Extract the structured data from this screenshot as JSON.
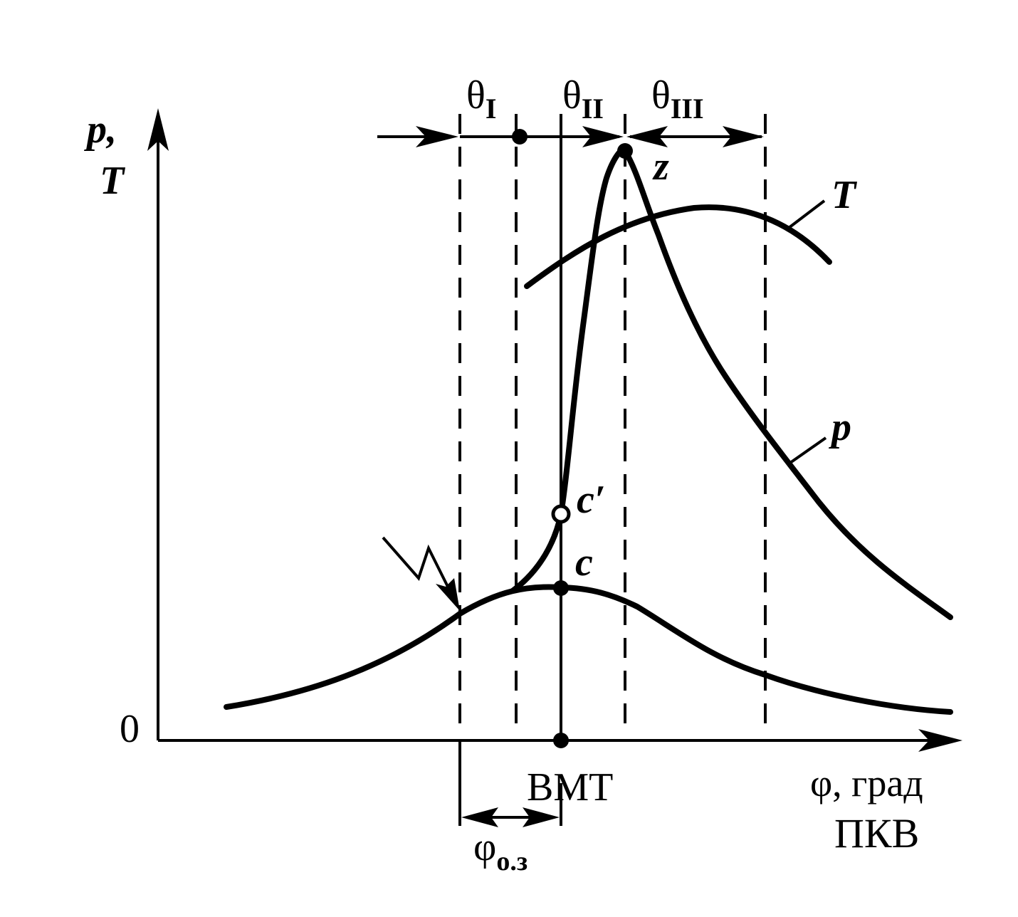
{
  "axes": {
    "y_label_line1": "p,",
    "y_label_line2": "T",
    "origin": "0",
    "x_label_line1": "φ, град",
    "x_label_line2": "ПКВ"
  },
  "markers": {
    "tdc": "ВМТ",
    "ignition_advance": {
      "base": "φ",
      "sub": "о.з"
    }
  },
  "phases": [
    {
      "base": "θ",
      "sub": "I"
    },
    {
      "base": "θ",
      "sub": "II"
    },
    {
      "base": "θ",
      "sub": "III"
    }
  ],
  "points": {
    "z": "z",
    "c_prime": "c′",
    "c": "c"
  },
  "curves": {
    "temperature": "T",
    "pressure": "p"
  }
}
